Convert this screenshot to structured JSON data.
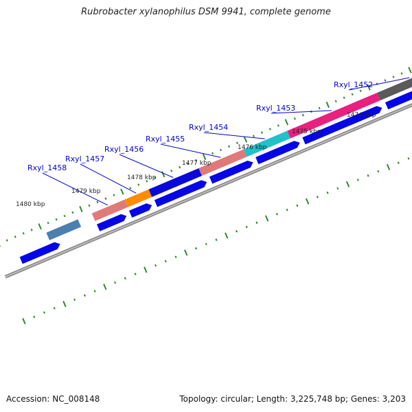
{
  "title": "Rubrobacter xylanophilus DSM 9941, complete genome",
  "footer": {
    "accession": "Accession: NC_008148",
    "stats": "Topology: circular; Length: 3,225,748 bp; Genes: 3,203"
  },
  "kbp_labels": [
    "1474 kbp",
    "1475 kbp",
    "1476 kbp",
    "1477 kbp",
    "1478 kbp",
    "1479 kbp",
    "1480 kbp"
  ],
  "genes": [
    {
      "name": "Rxyl_1452",
      "color": "#5a5a5a"
    },
    {
      "name": "Rxyl_1453",
      "color": "#e8207e"
    },
    {
      "name": "Rxyl_1454",
      "color": "#22c0c8"
    },
    {
      "name": "Rxyl_1455",
      "color": "#e07a78"
    },
    {
      "name": "Rxyl_1456",
      "color": "#0a0ad8"
    },
    {
      "name": "Rxyl_1457",
      "color": "#ff8c00"
    },
    {
      "name": "Rxyl_1458",
      "color": "#e07a78"
    }
  ],
  "colors": {
    "cds_arrow": "#0505e8",
    "backbone": "#8c8c8c",
    "tick": "#2a8a2a",
    "label_text": "#0000cc",
    "edge_segment": "#4a7fb0"
  }
}
